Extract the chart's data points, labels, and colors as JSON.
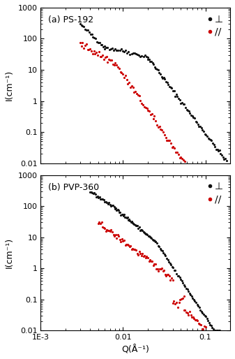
{
  "title_a": "(a) PS-192",
  "title_b": "(b) PVP-360",
  "xlabel": "Q(Å⁻¹)",
  "ylabel": "I(cm⁻¹)",
  "xlim": [
    0.001,
    0.2
  ],
  "ylim_a": [
    0.01,
    1000
  ],
  "ylim_b": [
    0.01,
    1000
  ],
  "color_perp": "#111111",
  "color_para": "#cc0000",
  "legend_perp": "⊥",
  "legend_para": "//",
  "marker_size": 2.5,
  "figsize": [
    3.37,
    5.14
  ],
  "dpi": 100
}
